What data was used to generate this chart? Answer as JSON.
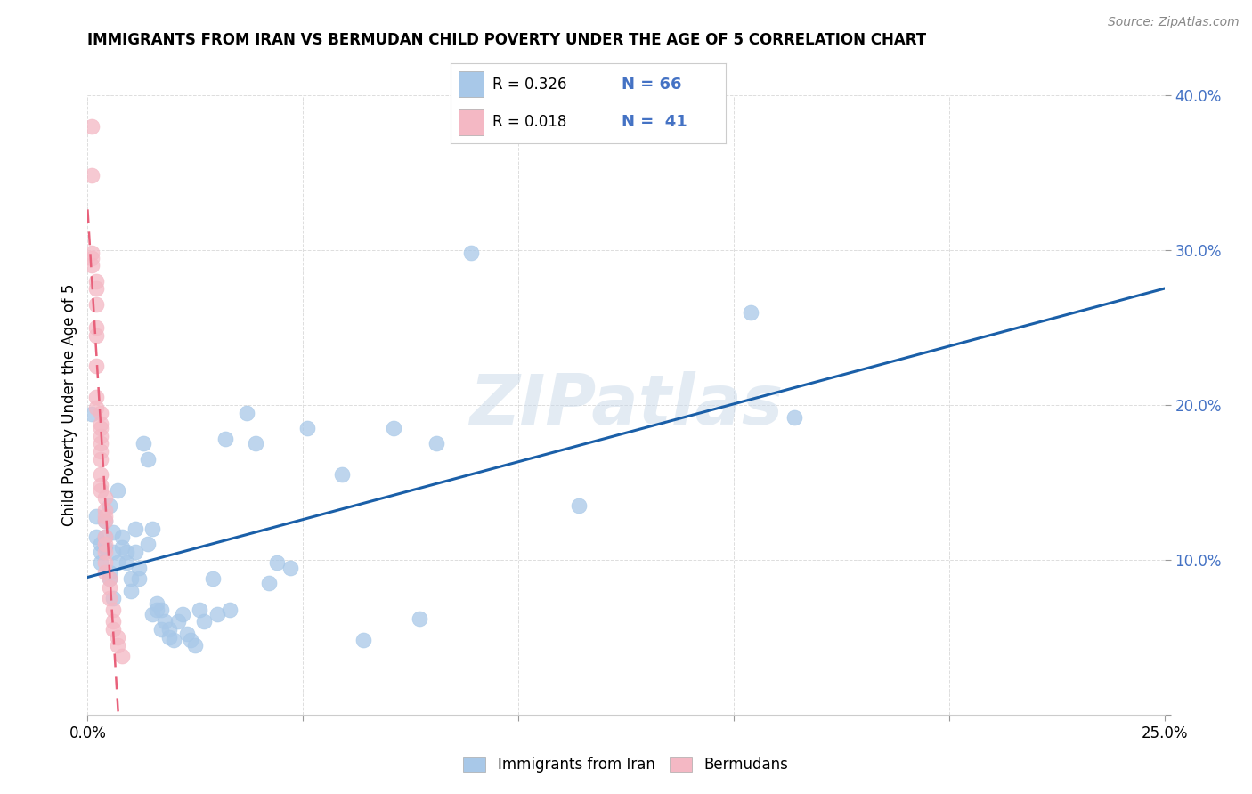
{
  "title": "IMMIGRANTS FROM IRAN VS BERMUDAN CHILD POVERTY UNDER THE AGE OF 5 CORRELATION CHART",
  "source": "Source: ZipAtlas.com",
  "ylabel": "Child Poverty Under the Age of 5",
  "xmin": 0.0,
  "xmax": 0.25,
  "ymin": 0.0,
  "ymax": 0.4,
  "blue_color": "#a8c8e8",
  "pink_color": "#f4b8c4",
  "blue_line_color": "#1a5fa8",
  "pink_line_color": "#e8607a",
  "watermark": "ZIPatlas",
  "blue_scatter": [
    [
      0.001,
      0.194
    ],
    [
      0.002,
      0.115
    ],
    [
      0.002,
      0.128
    ],
    [
      0.003,
      0.11
    ],
    [
      0.003,
      0.105
    ],
    [
      0.003,
      0.098
    ],
    [
      0.004,
      0.115
    ],
    [
      0.004,
      0.125
    ],
    [
      0.004,
      0.108
    ],
    [
      0.005,
      0.135
    ],
    [
      0.005,
      0.092
    ],
    [
      0.005,
      0.088
    ],
    [
      0.006,
      0.118
    ],
    [
      0.006,
      0.105
    ],
    [
      0.006,
      0.075
    ],
    [
      0.007,
      0.145
    ],
    [
      0.007,
      0.098
    ],
    [
      0.008,
      0.115
    ],
    [
      0.008,
      0.108
    ],
    [
      0.009,
      0.105
    ],
    [
      0.009,
      0.098
    ],
    [
      0.01,
      0.088
    ],
    [
      0.01,
      0.08
    ],
    [
      0.011,
      0.12
    ],
    [
      0.011,
      0.105
    ],
    [
      0.012,
      0.088
    ],
    [
      0.012,
      0.095
    ],
    [
      0.013,
      0.175
    ],
    [
      0.014,
      0.165
    ],
    [
      0.014,
      0.11
    ],
    [
      0.015,
      0.12
    ],
    [
      0.015,
      0.065
    ],
    [
      0.016,
      0.068
    ],
    [
      0.016,
      0.072
    ],
    [
      0.017,
      0.068
    ],
    [
      0.017,
      0.055
    ],
    [
      0.018,
      0.06
    ],
    [
      0.019,
      0.055
    ],
    [
      0.019,
      0.05
    ],
    [
      0.02,
      0.048
    ],
    [
      0.021,
      0.06
    ],
    [
      0.022,
      0.065
    ],
    [
      0.023,
      0.052
    ],
    [
      0.024,
      0.048
    ],
    [
      0.025,
      0.045
    ],
    [
      0.026,
      0.068
    ],
    [
      0.027,
      0.06
    ],
    [
      0.029,
      0.088
    ],
    [
      0.03,
      0.065
    ],
    [
      0.032,
      0.178
    ],
    [
      0.033,
      0.068
    ],
    [
      0.037,
      0.195
    ],
    [
      0.039,
      0.175
    ],
    [
      0.042,
      0.085
    ],
    [
      0.044,
      0.098
    ],
    [
      0.047,
      0.095
    ],
    [
      0.051,
      0.185
    ],
    [
      0.059,
      0.155
    ],
    [
      0.064,
      0.048
    ],
    [
      0.071,
      0.185
    ],
    [
      0.077,
      0.062
    ],
    [
      0.081,
      0.175
    ],
    [
      0.089,
      0.298
    ],
    [
      0.114,
      0.135
    ],
    [
      0.154,
      0.26
    ],
    [
      0.164,
      0.192
    ]
  ],
  "pink_scatter": [
    [
      0.001,
      0.38
    ],
    [
      0.001,
      0.348
    ],
    [
      0.001,
      0.298
    ],
    [
      0.001,
      0.295
    ],
    [
      0.001,
      0.29
    ],
    [
      0.002,
      0.28
    ],
    [
      0.002,
      0.275
    ],
    [
      0.002,
      0.265
    ],
    [
      0.002,
      0.25
    ],
    [
      0.002,
      0.245
    ],
    [
      0.002,
      0.225
    ],
    [
      0.002,
      0.205
    ],
    [
      0.002,
      0.198
    ],
    [
      0.003,
      0.195
    ],
    [
      0.003,
      0.188
    ],
    [
      0.003,
      0.185
    ],
    [
      0.003,
      0.18
    ],
    [
      0.003,
      0.175
    ],
    [
      0.003,
      0.17
    ],
    [
      0.003,
      0.165
    ],
    [
      0.003,
      0.155
    ],
    [
      0.003,
      0.148
    ],
    [
      0.003,
      0.145
    ],
    [
      0.004,
      0.14
    ],
    [
      0.004,
      0.132
    ],
    [
      0.004,
      0.128
    ],
    [
      0.004,
      0.125
    ],
    [
      0.004,
      0.115
    ],
    [
      0.004,
      0.11
    ],
    [
      0.004,
      0.105
    ],
    [
      0.004,
      0.098
    ],
    [
      0.004,
      0.092
    ],
    [
      0.005,
      0.088
    ],
    [
      0.005,
      0.082
    ],
    [
      0.005,
      0.075
    ],
    [
      0.006,
      0.068
    ],
    [
      0.006,
      0.06
    ],
    [
      0.006,
      0.055
    ],
    [
      0.007,
      0.05
    ],
    [
      0.007,
      0.045
    ],
    [
      0.008,
      0.038
    ]
  ]
}
